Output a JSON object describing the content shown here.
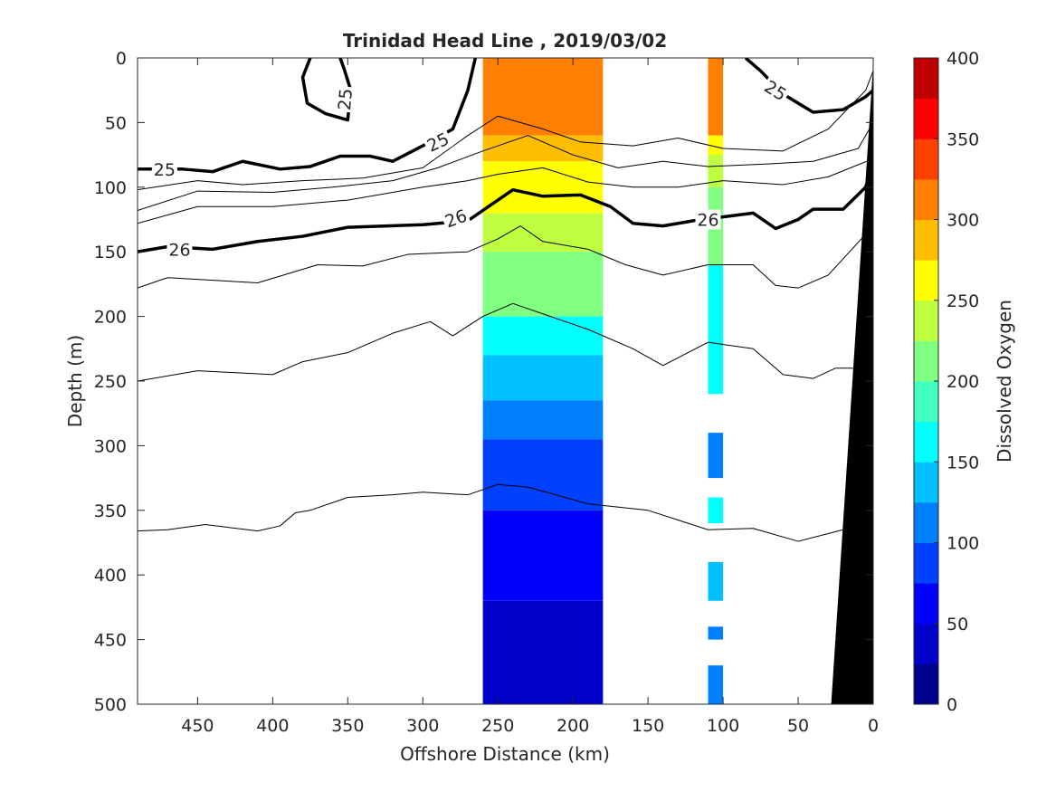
{
  "chart_data": {
    "type": "heatmap",
    "title": "Trinidad Head Line , 2019/03/02",
    "xlabel": "Offshore Distance (km)",
    "ylabel": "Depth (m)",
    "colorbar_label": "Dissolved Oxygen",
    "xlim": [
      490,
      0
    ],
    "ylim": [
      0,
      500
    ],
    "x_ticks": [
      450,
      400,
      350,
      300,
      250,
      200,
      150,
      100,
      50,
      0
    ],
    "y_ticks": [
      0,
      50,
      100,
      150,
      200,
      250,
      300,
      350,
      400,
      450,
      500
    ],
    "colorbar_range": [
      0,
      400
    ],
    "colorbar_ticks": [
      0,
      50,
      100,
      150,
      200,
      250,
      300,
      350,
      400
    ],
    "colorbar_colors": [
      "#00008f",
      "#0000c8",
      "#0000ff",
      "#0040ff",
      "#0080ff",
      "#00c0ff",
      "#00ffff",
      "#40ffbf",
      "#80ff80",
      "#bfff40",
      "#ffff00",
      "#ffbf00",
      "#ff8000",
      "#ff4000",
      "#ff0000",
      "#bf0000"
    ],
    "oxygen_profiles": [
      {
        "x_range": [
          260,
          180
        ],
        "bands": [
          {
            "depth": [
              0,
              60
            ],
            "oxygen": 310
          },
          {
            "depth": [
              60,
              80
            ],
            "oxygen": 290
          },
          {
            "depth": [
              80,
              120
            ],
            "oxygen": 255
          },
          {
            "depth": [
              120,
              150
            ],
            "oxygen": 230
          },
          {
            "depth": [
              150,
              200
            ],
            "oxygen": 205
          },
          {
            "depth": [
              200,
              230
            ],
            "oxygen": 165
          },
          {
            "depth": [
              230,
              265
            ],
            "oxygen": 140
          },
          {
            "depth": [
              265,
              295
            ],
            "oxygen": 115
          },
          {
            "depth": [
              295,
              350
            ],
            "oxygen": 90
          },
          {
            "depth": [
              350,
              420
            ],
            "oxygen": 65
          },
          {
            "depth": [
              420,
              500
            ],
            "oxygen": 40
          }
        ]
      },
      {
        "x_range": [
          110,
          100
        ],
        "bands": [
          {
            "depth": [
              0,
              60
            ],
            "oxygen": 310
          },
          {
            "depth": [
              60,
              75
            ],
            "oxygen": 255
          },
          {
            "depth": [
              75,
              100
            ],
            "oxygen": 235
          },
          {
            "depth": [
              100,
              160
            ],
            "oxygen": 200
          },
          {
            "depth": [
              160,
              260
            ],
            "oxygen": 160
          },
          {
            "depth": [
              290,
              325
            ],
            "oxygen": 100
          },
          {
            "depth": [
              340,
              360
            ],
            "oxygen": 160
          },
          {
            "depth": [
              390,
              420
            ],
            "oxygen": 140
          },
          {
            "depth": [
              440,
              450
            ],
            "oxygen": 120
          },
          {
            "depth": [
              470,
              500
            ],
            "oxygen": 120
          }
        ]
      }
    ],
    "bathymetry": [
      [
        28,
        500
      ],
      [
        0,
        500
      ],
      [
        0,
        5
      ]
    ],
    "density_contours": [
      {
        "label": "25",
        "bold": true,
        "points": [
          [
            490,
            86
          ],
          [
            460,
            86
          ],
          [
            440,
            88
          ],
          [
            420,
            80
          ],
          [
            395,
            86
          ],
          [
            375,
            84
          ],
          [
            355,
            76
          ],
          [
            335,
            76
          ],
          [
            320,
            80
          ],
          [
            300,
            68
          ],
          [
            280,
            55
          ],
          [
            270,
            25
          ],
          [
            265,
            0
          ]
        ]
      },
      {
        "label": "25",
        "bold": true,
        "points": [
          [
            375,
            0
          ],
          [
            380,
            15
          ],
          [
            377,
            35
          ],
          [
            365,
            43
          ],
          [
            350,
            48
          ],
          [
            348,
            25
          ],
          [
            352,
            10
          ],
          [
            355,
            0
          ]
        ]
      },
      {
        "label": "25",
        "bold": true,
        "points": [
          [
            85,
            0
          ],
          [
            75,
            10
          ],
          [
            60,
            28
          ],
          [
            40,
            42
          ],
          [
            20,
            40
          ],
          [
            5,
            30
          ],
          [
            0,
            25
          ]
        ]
      },
      {
        "label": "",
        "bold": false,
        "points": [
          [
            490,
            102
          ],
          [
            450,
            95
          ],
          [
            420,
            98
          ],
          [
            380,
            95
          ],
          [
            340,
            93
          ],
          [
            300,
            85
          ],
          [
            270,
            60
          ],
          [
            250,
            45
          ],
          [
            220,
            55
          ],
          [
            195,
            65
          ],
          [
            160,
            68
          ],
          [
            130,
            62
          ],
          [
            100,
            70
          ],
          [
            60,
            72
          ],
          [
            30,
            55
          ],
          [
            5,
            25
          ],
          [
            0,
            10
          ]
        ]
      },
      {
        "label": "",
        "bold": false,
        "points": [
          [
            490,
            118
          ],
          [
            450,
            103
          ],
          [
            400,
            104
          ],
          [
            360,
            100
          ],
          [
            320,
            95
          ],
          [
            290,
            85
          ],
          [
            260,
            72
          ],
          [
            230,
            60
          ],
          [
            200,
            75
          ],
          [
            170,
            85
          ],
          [
            140,
            80
          ],
          [
            110,
            84
          ],
          [
            70,
            82
          ],
          [
            40,
            80
          ],
          [
            10,
            70
          ],
          [
            0,
            50
          ]
        ]
      },
      {
        "label": "",
        "bold": false,
        "points": [
          [
            490,
            128
          ],
          [
            450,
            115
          ],
          [
            400,
            115
          ],
          [
            350,
            110
          ],
          [
            300,
            100
          ],
          [
            270,
            95
          ],
          [
            250,
            90
          ],
          [
            220,
            85
          ],
          [
            190,
            96
          ],
          [
            160,
            100
          ],
          [
            130,
            100
          ],
          [
            100,
            95
          ],
          [
            60,
            98
          ],
          [
            30,
            92
          ],
          [
            0,
            78
          ]
        ]
      },
      {
        "label": "26",
        "bold": true,
        "points": [
          [
            490,
            150
          ],
          [
            470,
            146
          ],
          [
            440,
            148
          ],
          [
            410,
            142
          ],
          [
            380,
            138
          ],
          [
            350,
            131
          ],
          [
            300,
            129
          ],
          [
            270,
            126
          ],
          [
            250,
            110
          ],
          [
            240,
            102
          ],
          [
            220,
            107
          ],
          [
            195,
            106
          ],
          [
            175,
            115
          ],
          [
            160,
            128
          ],
          [
            140,
            130
          ],
          [
            120,
            126
          ],
          [
            100,
            123
          ],
          [
            80,
            120
          ],
          [
            65,
            132
          ],
          [
            50,
            125
          ],
          [
            40,
            117
          ],
          [
            20,
            117
          ],
          [
            5,
            100
          ],
          [
            0,
            80
          ]
        ]
      },
      {
        "label": "",
        "bold": false,
        "points": [
          [
            490,
            178
          ],
          [
            470,
            170
          ],
          [
            440,
            172
          ],
          [
            410,
            174
          ],
          [
            370,
            160
          ],
          [
            340,
            161
          ],
          [
            310,
            152
          ],
          [
            270,
            150
          ],
          [
            250,
            140
          ],
          [
            235,
            130
          ],
          [
            220,
            142
          ],
          [
            190,
            148
          ],
          [
            165,
            160
          ],
          [
            140,
            168
          ],
          [
            110,
            160
          ],
          [
            80,
            160
          ],
          [
            65,
            176
          ],
          [
            50,
            178
          ],
          [
            30,
            168
          ],
          [
            0,
            130
          ]
        ]
      },
      {
        "label": "",
        "bold": false,
        "points": [
          [
            490,
            250
          ],
          [
            450,
            242
          ],
          [
            400,
            245
          ],
          [
            380,
            235
          ],
          [
            350,
            228
          ],
          [
            320,
            213
          ],
          [
            295,
            204
          ],
          [
            280,
            215
          ],
          [
            260,
            200
          ],
          [
            240,
            190
          ],
          [
            220,
            198
          ],
          [
            190,
            210
          ],
          [
            160,
            225
          ],
          [
            140,
            238
          ],
          [
            110,
            220
          ],
          [
            80,
            225
          ],
          [
            60,
            245
          ],
          [
            40,
            248
          ],
          [
            25,
            240
          ],
          [
            10,
            240
          ],
          [
            0,
            230
          ]
        ]
      },
      {
        "label": "",
        "bold": false,
        "points": [
          [
            490,
            366
          ],
          [
            470,
            365
          ],
          [
            445,
            361
          ],
          [
            410,
            366
          ],
          [
            395,
            362
          ],
          [
            385,
            352
          ],
          [
            375,
            350
          ],
          [
            350,
            340
          ],
          [
            320,
            338
          ],
          [
            300,
            336
          ],
          [
            270,
            338
          ],
          [
            250,
            330
          ],
          [
            230,
            332
          ],
          [
            190,
            345
          ],
          [
            150,
            350
          ],
          [
            110,
            365
          ],
          [
            80,
            364
          ],
          [
            50,
            374
          ],
          [
            20,
            365
          ],
          [
            0,
            340
          ]
        ]
      }
    ],
    "contour_labels": [
      {
        "text": "25",
        "x": 472,
        "y": 86,
        "angle": 0
      },
      {
        "text": "25",
        "x": 352,
        "y": 32,
        "angle": -85
      },
      {
        "text": "25",
        "x": 290,
        "y": 65,
        "angle": -25
      },
      {
        "text": "25",
        "x": 65,
        "y": 25,
        "angle": 32
      },
      {
        "text": "26",
        "x": 462,
        "y": 148,
        "angle": 0
      },
      {
        "text": "26",
        "x": 278,
        "y": 124,
        "angle": -20
      },
      {
        "text": "26",
        "x": 110,
        "y": 125,
        "angle": 0
      }
    ]
  }
}
